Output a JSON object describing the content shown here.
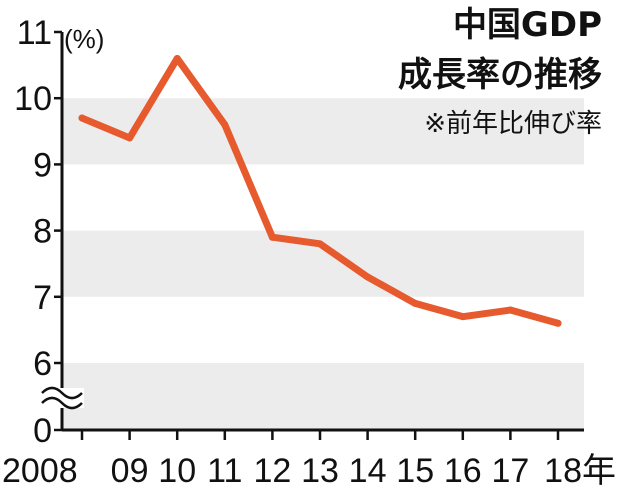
{
  "chart_data": {
    "type": "line",
    "title": "中国GDP",
    "title_line2": "成長率の推移",
    "subtitle": "※前年比伸び率",
    "y_unit_label": "(%)",
    "y_ticks": [
      "0",
      "6",
      "7",
      "8",
      "9",
      "10",
      "11"
    ],
    "y_axis_break": true,
    "ylim": [
      6,
      11
    ],
    "x_tick_labels": [
      "2008",
      "09",
      "10",
      "11",
      "12",
      "13",
      "14",
      "15",
      "16",
      "17",
      "18年"
    ],
    "grid": "alternating horizontal bands",
    "series": [
      {
        "color": "#e65a2e",
        "x": [
          2008,
          2009,
          2010,
          2011,
          2012,
          2013,
          2014,
          2015,
          2016,
          2017,
          2018
        ],
        "values": [
          9.7,
          9.4,
          10.6,
          9.6,
          7.9,
          7.8,
          7.3,
          6.9,
          6.7,
          6.8,
          6.6
        ]
      }
    ],
    "colors": {
      "line": "#e65a2e",
      "band": "#ececec",
      "axis": "#111111"
    }
  }
}
